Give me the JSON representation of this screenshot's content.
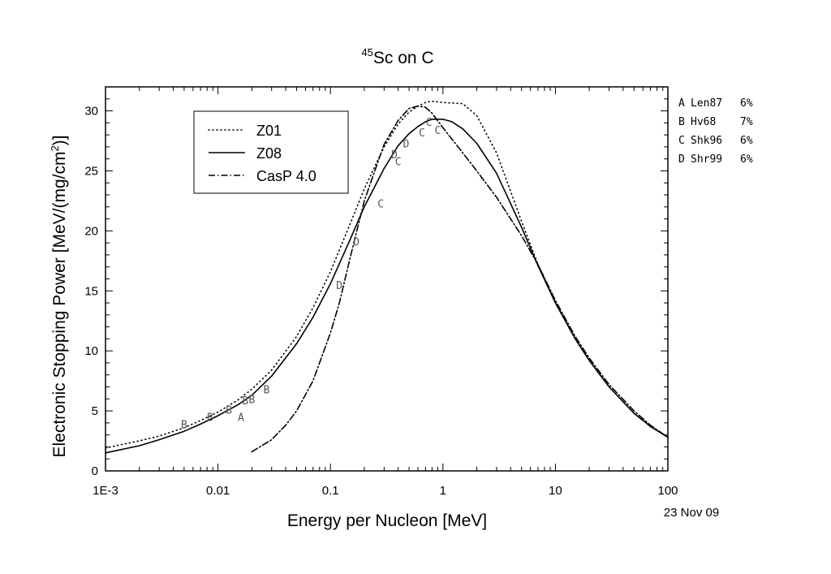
{
  "chart_data": {
    "type": "line",
    "title_prefix": "45",
    "title_main": "Sc on C",
    "xlabel": "Energy per Nucleon [MeV]",
    "ylabel": "Electronic Stopping Power [MeV/(mg/cm",
    "ylabel_sup": "2",
    "ylabel_end": ")]",
    "xscale": "log",
    "xlim": [
      0.001,
      100
    ],
    "ylim": [
      0,
      32
    ],
    "xticks": [
      {
        "value": 0.001,
        "label": "1E-3"
      },
      {
        "value": 0.01,
        "label": "0.01"
      },
      {
        "value": 0.1,
        "label": "0.1"
      },
      {
        "value": 1,
        "label": "1"
      },
      {
        "value": 10,
        "label": "10"
      },
      {
        "value": 100,
        "label": "100"
      }
    ],
    "yticks": [
      0,
      5,
      10,
      15,
      20,
      25,
      30
    ],
    "series": [
      {
        "name": "Z01",
        "style": "dotted",
        "x": [
          0.001,
          0.002,
          0.003,
          0.005,
          0.007,
          0.01,
          0.015,
          0.02,
          0.03,
          0.05,
          0.07,
          0.1,
          0.15,
          0.2,
          0.3,
          0.4,
          0.5,
          0.6,
          0.7,
          0.8,
          1,
          1.5,
          2,
          3,
          5,
          7,
          10,
          15,
          20,
          30,
          50,
          70,
          100
        ],
        "y": [
          1.9,
          2.5,
          2.9,
          3.6,
          4.2,
          4.9,
          5.9,
          6.8,
          8.4,
          11.2,
          13.6,
          16.6,
          20.6,
          23.5,
          27.0,
          28.9,
          29.9,
          30.4,
          30.7,
          30.8,
          30.7,
          30.6,
          29.6,
          26.5,
          20.8,
          17.2,
          14.0,
          11.0,
          9.2,
          7.0,
          4.8,
          3.7,
          2.8
        ]
      },
      {
        "name": "Z08",
        "style": "solid",
        "x": [
          0.001,
          0.002,
          0.003,
          0.005,
          0.007,
          0.01,
          0.015,
          0.02,
          0.03,
          0.05,
          0.07,
          0.1,
          0.15,
          0.2,
          0.3,
          0.4,
          0.5,
          0.6,
          0.7,
          0.8,
          1,
          1.2,
          1.5,
          2,
          3,
          5,
          7,
          10,
          15,
          20,
          30,
          50,
          70,
          100
        ],
        "y": [
          1.5,
          2.1,
          2.6,
          3.3,
          3.9,
          4.6,
          5.5,
          6.3,
          7.9,
          10.6,
          12.8,
          15.6,
          19.3,
          22.0,
          25.2,
          27.1,
          28.1,
          28.7,
          29.1,
          29.3,
          29.3,
          29.1,
          28.5,
          27.3,
          24.8,
          20.3,
          17.1,
          14.0,
          11.0,
          9.2,
          7.0,
          4.8,
          3.7,
          2.8
        ]
      },
      {
        "name": "CasP 4.0",
        "style": "dashdot",
        "x": [
          0.02,
          0.03,
          0.04,
          0.05,
          0.07,
          0.1,
          0.12,
          0.15,
          0.2,
          0.3,
          0.4,
          0.5,
          0.6,
          0.7,
          0.8,
          1,
          1.5,
          2,
          3,
          5,
          7,
          10,
          15,
          20,
          30,
          50,
          70,
          100
        ],
        "y": [
          1.6,
          2.6,
          3.8,
          5.0,
          7.5,
          11.5,
          14.0,
          17.8,
          22.5,
          27.2,
          29.2,
          30.2,
          30.4,
          30.3,
          29.8,
          28.6,
          26.5,
          25.0,
          22.8,
          19.6,
          17.2,
          14.2,
          11.2,
          9.4,
          7.2,
          5.0,
          3.8,
          2.8
        ]
      }
    ],
    "data_points": [
      {
        "label": "A",
        "x": 0.016,
        "y": 4.5
      },
      {
        "label": "B",
        "x": 0.005,
        "y": 3.9
      },
      {
        "label": "B",
        "x": 0.0085,
        "y": 4.5
      },
      {
        "label": "B",
        "x": 0.0125,
        "y": 5.1
      },
      {
        "label": "B",
        "x": 0.0175,
        "y": 5.9
      },
      {
        "label": "B",
        "x": 0.02,
        "y": 6.0
      },
      {
        "label": "B",
        "x": 0.027,
        "y": 6.8
      },
      {
        "label": "C",
        "x": 0.28,
        "y": 22.3
      },
      {
        "label": "C",
        "x": 0.4,
        "y": 25.8
      },
      {
        "label": "C",
        "x": 0.65,
        "y": 28.2
      },
      {
        "label": "C",
        "x": 0.75,
        "y": 29.1
      },
      {
        "label": "C",
        "x": 0.9,
        "y": 28.4
      },
      {
        "label": "D",
        "x": 0.12,
        "y": 15.5
      },
      {
        "label": "D",
        "x": 0.17,
        "y": 19.1
      },
      {
        "label": "D",
        "x": 0.37,
        "y": 26.4
      },
      {
        "label": "D",
        "x": 0.47,
        "y": 27.3
      }
    ],
    "legend_position": "top-left",
    "references": [
      {
        "code": "A",
        "name": "Len87",
        "pct": "6%"
      },
      {
        "code": "B",
        "name": "Hv68",
        "pct": "7%"
      },
      {
        "code": "C",
        "name": "Shk96",
        "pct": "6%"
      },
      {
        "code": "D",
        "name": "Shr99",
        "pct": "6%"
      }
    ],
    "date": "23 Nov 09"
  }
}
